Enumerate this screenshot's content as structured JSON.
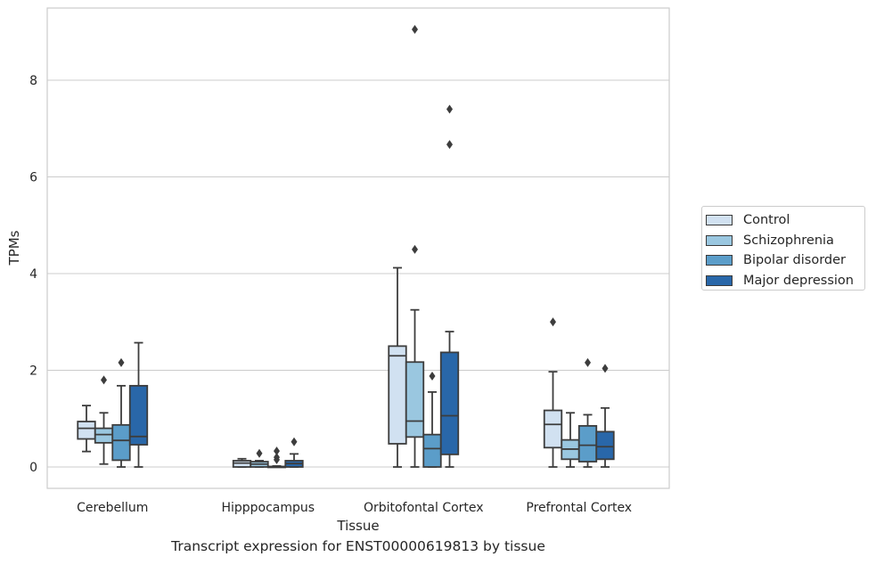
{
  "caption": "Transcript expression for ENST00000619813 by tissue",
  "chart_data": {
    "type": "box",
    "xlabel": "Tissue",
    "ylabel": "TPMs",
    "ylim": [
      -0.44,
      9.6
    ],
    "yticks": [
      0,
      2,
      4,
      6,
      8
    ],
    "grid": "horizontal",
    "legend_position": "right",
    "categories": [
      "Cerebellum",
      "Hipppocampus",
      "Orbitofontal Cortex",
      "Prefrontal Cortex"
    ],
    "series": [
      {
        "name": "Control",
        "color": "#d1e1f1",
        "boxes": [
          {
            "whislo": 0.32,
            "q1": 0.58,
            "med": 0.8,
            "q3": 0.94,
            "whishi": 1.27,
            "fliers": []
          },
          {
            "whislo": 0.0,
            "q1": 0.0,
            "med": 0.08,
            "q3": 0.13,
            "whishi": 0.17,
            "fliers": []
          },
          {
            "whislo": 0.0,
            "q1": 0.48,
            "med": 2.3,
            "q3": 2.5,
            "whishi": 4.12,
            "fliers": []
          },
          {
            "whislo": 0.0,
            "q1": 0.4,
            "med": 0.88,
            "q3": 1.17,
            "whishi": 1.97,
            "fliers": [
              3.0
            ]
          }
        ]
      },
      {
        "name": "Schizophrenia",
        "color": "#9ac7e0",
        "boxes": [
          {
            "whislo": 0.06,
            "q1": 0.5,
            "med": 0.67,
            "q3": 0.8,
            "whishi": 1.12,
            "fliers": [
              1.8
            ]
          },
          {
            "whislo": 0.0,
            "q1": 0.0,
            "med": 0.06,
            "q3": 0.11,
            "whishi": 0.13,
            "fliers": [
              0.28
            ]
          },
          {
            "whislo": 0.0,
            "q1": 0.62,
            "med": 0.95,
            "q3": 2.17,
            "whishi": 3.25,
            "fliers": [
              4.5,
              9.05
            ]
          },
          {
            "whislo": 0.0,
            "q1": 0.16,
            "med": 0.37,
            "q3": 0.56,
            "whishi": 1.12,
            "fliers": []
          }
        ]
      },
      {
        "name": "Bipolar disorder",
        "color": "#5b9dc9",
        "boxes": [
          {
            "whislo": 0.0,
            "q1": 0.14,
            "med": 0.55,
            "q3": 0.87,
            "whishi": 1.68,
            "fliers": [
              2.16
            ]
          },
          {
            "whislo": 0.0,
            "q1": 0.0,
            "med": 0.0,
            "q3": 0.01,
            "whishi": 0.02,
            "fliers": [
              0.15,
              0.2,
              0.33
            ]
          },
          {
            "whislo": 0.0,
            "q1": 0.0,
            "med": 0.38,
            "q3": 0.67,
            "whishi": 1.55,
            "fliers": [
              1.88
            ]
          },
          {
            "whislo": 0.0,
            "q1": 0.11,
            "med": 0.45,
            "q3": 0.85,
            "whishi": 1.08,
            "fliers": [
              2.16
            ]
          }
        ]
      },
      {
        "name": "Major depression",
        "color": "#2967a9",
        "boxes": [
          {
            "whislo": 0.0,
            "q1": 0.46,
            "med": 0.63,
            "q3": 1.68,
            "whishi": 2.57,
            "fliers": []
          },
          {
            "whislo": 0.0,
            "q1": 0.0,
            "med": 0.07,
            "q3": 0.13,
            "whishi": 0.27,
            "fliers": [
              0.52
            ]
          },
          {
            "whislo": 0.0,
            "q1": 0.26,
            "med": 1.06,
            "q3": 2.37,
            "whishi": 2.8,
            "fliers": [
              6.67,
              7.4
            ]
          },
          {
            "whislo": 0.0,
            "q1": 0.16,
            "med": 0.42,
            "q3": 0.73,
            "whishi": 1.22,
            "fliers": [
              2.04
            ]
          }
        ]
      }
    ]
  }
}
